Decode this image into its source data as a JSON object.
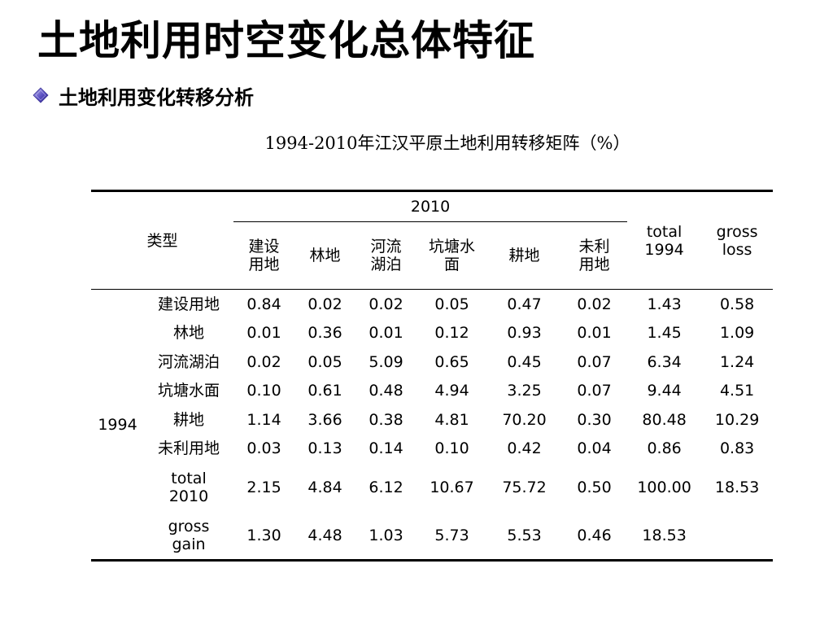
{
  "page": {
    "title": "土地利用时空变化总体特征",
    "bullet": "土地利用变化转移分析"
  },
  "table": {
    "caption": "1994-2010年江汉平原土地利用转移矩阵（%）",
    "type_label": "类型",
    "group_2010": "2010",
    "col_headers": [
      "建设\n用地",
      "林地",
      "河流\n湖泊",
      "坑塘水\n面",
      "耕地",
      "未利\n用地"
    ],
    "total_1994_header": "total\n1994",
    "gross_loss_header": "gross\nloss",
    "row_group": "1994",
    "rows": [
      {
        "label": "建设用地",
        "cells": [
          "0.84",
          "0.02",
          "0.02",
          "0.05",
          "0.47",
          "0.02",
          "1.43",
          "0.58"
        ]
      },
      {
        "label": "林地",
        "cells": [
          "0.01",
          "0.36",
          "0.01",
          "0.12",
          "0.93",
          "0.01",
          "1.45",
          "1.09"
        ]
      },
      {
        "label": "河流湖泊",
        "cells": [
          "0.02",
          "0.05",
          "5.09",
          "0.65",
          "0.45",
          "0.07",
          "6.34",
          "1.24"
        ]
      },
      {
        "label": "坑塘水面",
        "cells": [
          "0.10",
          "0.61",
          "0.48",
          "4.94",
          "3.25",
          "0.07",
          "9.44",
          "4.51"
        ]
      },
      {
        "label": "耕地",
        "cells": [
          "1.14",
          "3.66",
          "0.38",
          "4.81",
          "70.20",
          "0.30",
          "80.48",
          "10.29"
        ]
      },
      {
        "label": "未利用地",
        "cells": [
          "0.03",
          "0.13",
          "0.14",
          "0.10",
          "0.42",
          "0.04",
          "0.86",
          "0.83"
        ]
      }
    ],
    "total_row": {
      "label": "total\n2010",
      "cells": [
        "2.15",
        "4.84",
        "6.12",
        "10.67",
        "75.72",
        "0.50",
        "100.00",
        "18.53"
      ]
    },
    "gain_row": {
      "label": "gross\ngain",
      "cells": [
        "1.30",
        "4.48",
        "1.03",
        "5.73",
        "5.53",
        "0.46",
        "18.53",
        ""
      ]
    }
  }
}
